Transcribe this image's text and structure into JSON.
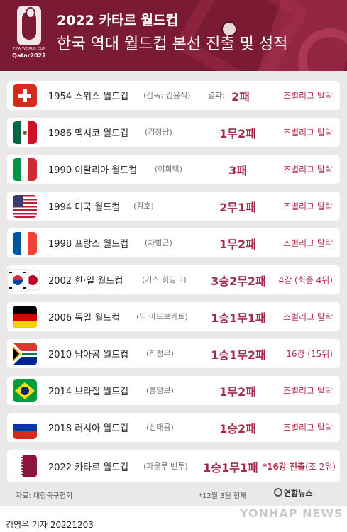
{
  "header": {
    "title_line1": "2022 카타르 월드컵",
    "title_line2": "한국 역대 월드컵 본선 진출 및 성적",
    "logo_fifa_text": "FIFA WORLD CUP",
    "logo_qatar_text": "Qatar2022",
    "colors": {
      "background": "#7b1b33",
      "accent": "#a42b4b"
    }
  },
  "rows": [
    {
      "flag": "switzerland-flag",
      "year_label": "1954 스위스 월드컵",
      "coach": "(감독: 김용식)",
      "result_prefix": "결과:",
      "result": "2패",
      "outcome": "조별리그 탈락"
    },
    {
      "flag": "mexico-flag",
      "year_label": "1986 멕시코 월드컵",
      "coach": "(김정남)",
      "result": "1무2패",
      "outcome": "조별리그 탈락"
    },
    {
      "flag": "italy-flag",
      "year_label": "1990 이탈리아 월드컵",
      "coach": "(이회택)",
      "result": "3패",
      "outcome": "조별리그 탈락"
    },
    {
      "flag": "usa-flag",
      "year_label": "1994 미국 월드컵",
      "coach": "(김호)",
      "result": "2무1패",
      "outcome": "조별리그 탈락"
    },
    {
      "flag": "france-flag",
      "year_label": "1998 프랑스 월드컵",
      "coach": "(차범근)",
      "result": "1무2패",
      "outcome": "조별리그 탈락"
    },
    {
      "flag": "korea-japan-flag",
      "year_label": "2002 한·일 월드컵",
      "coach": "(거스 히딩크)",
      "result": "3승2무2패",
      "outcome": "4강 (최종 4위)"
    },
    {
      "flag": "germany-flag",
      "year_label": "2006 독일 월드컵",
      "coach": "(딕 아드보카트)",
      "result": "1승1무1패",
      "outcome": "조별리그 탈락"
    },
    {
      "flag": "south-africa-flag",
      "year_label": "2010 남아공 월드컵",
      "coach": "(허정무)",
      "result": "1승1무2패",
      "outcome": "16강 (15위)"
    },
    {
      "flag": "brazil-flag",
      "year_label": "2014 브라질 월드컵",
      "coach": "(홍명보)",
      "result": "1무2패",
      "outcome": "조별리그 탈락"
    },
    {
      "flag": "russia-flag",
      "year_label": "2018 러시아 월드컵",
      "coach": "(신태용)",
      "result": "1승2패",
      "outcome": "조별리그 탈락"
    },
    {
      "flag": "qatar-flag",
      "year_label": "2022 카타르 월드컵",
      "coach": "(파울루 벤투)",
      "result": "1승1무1패",
      "outcome_highlight": "*16강 진출",
      "outcome_rest": "(조 2위)"
    }
  ],
  "footer": {
    "source": "자료: 대한축구협회",
    "as_of": "*12월 3일 현재",
    "agency_logo": "연합뉴스",
    "byline": "김영은 기자  20221203",
    "watermark": "YONHAP NEWS"
  }
}
